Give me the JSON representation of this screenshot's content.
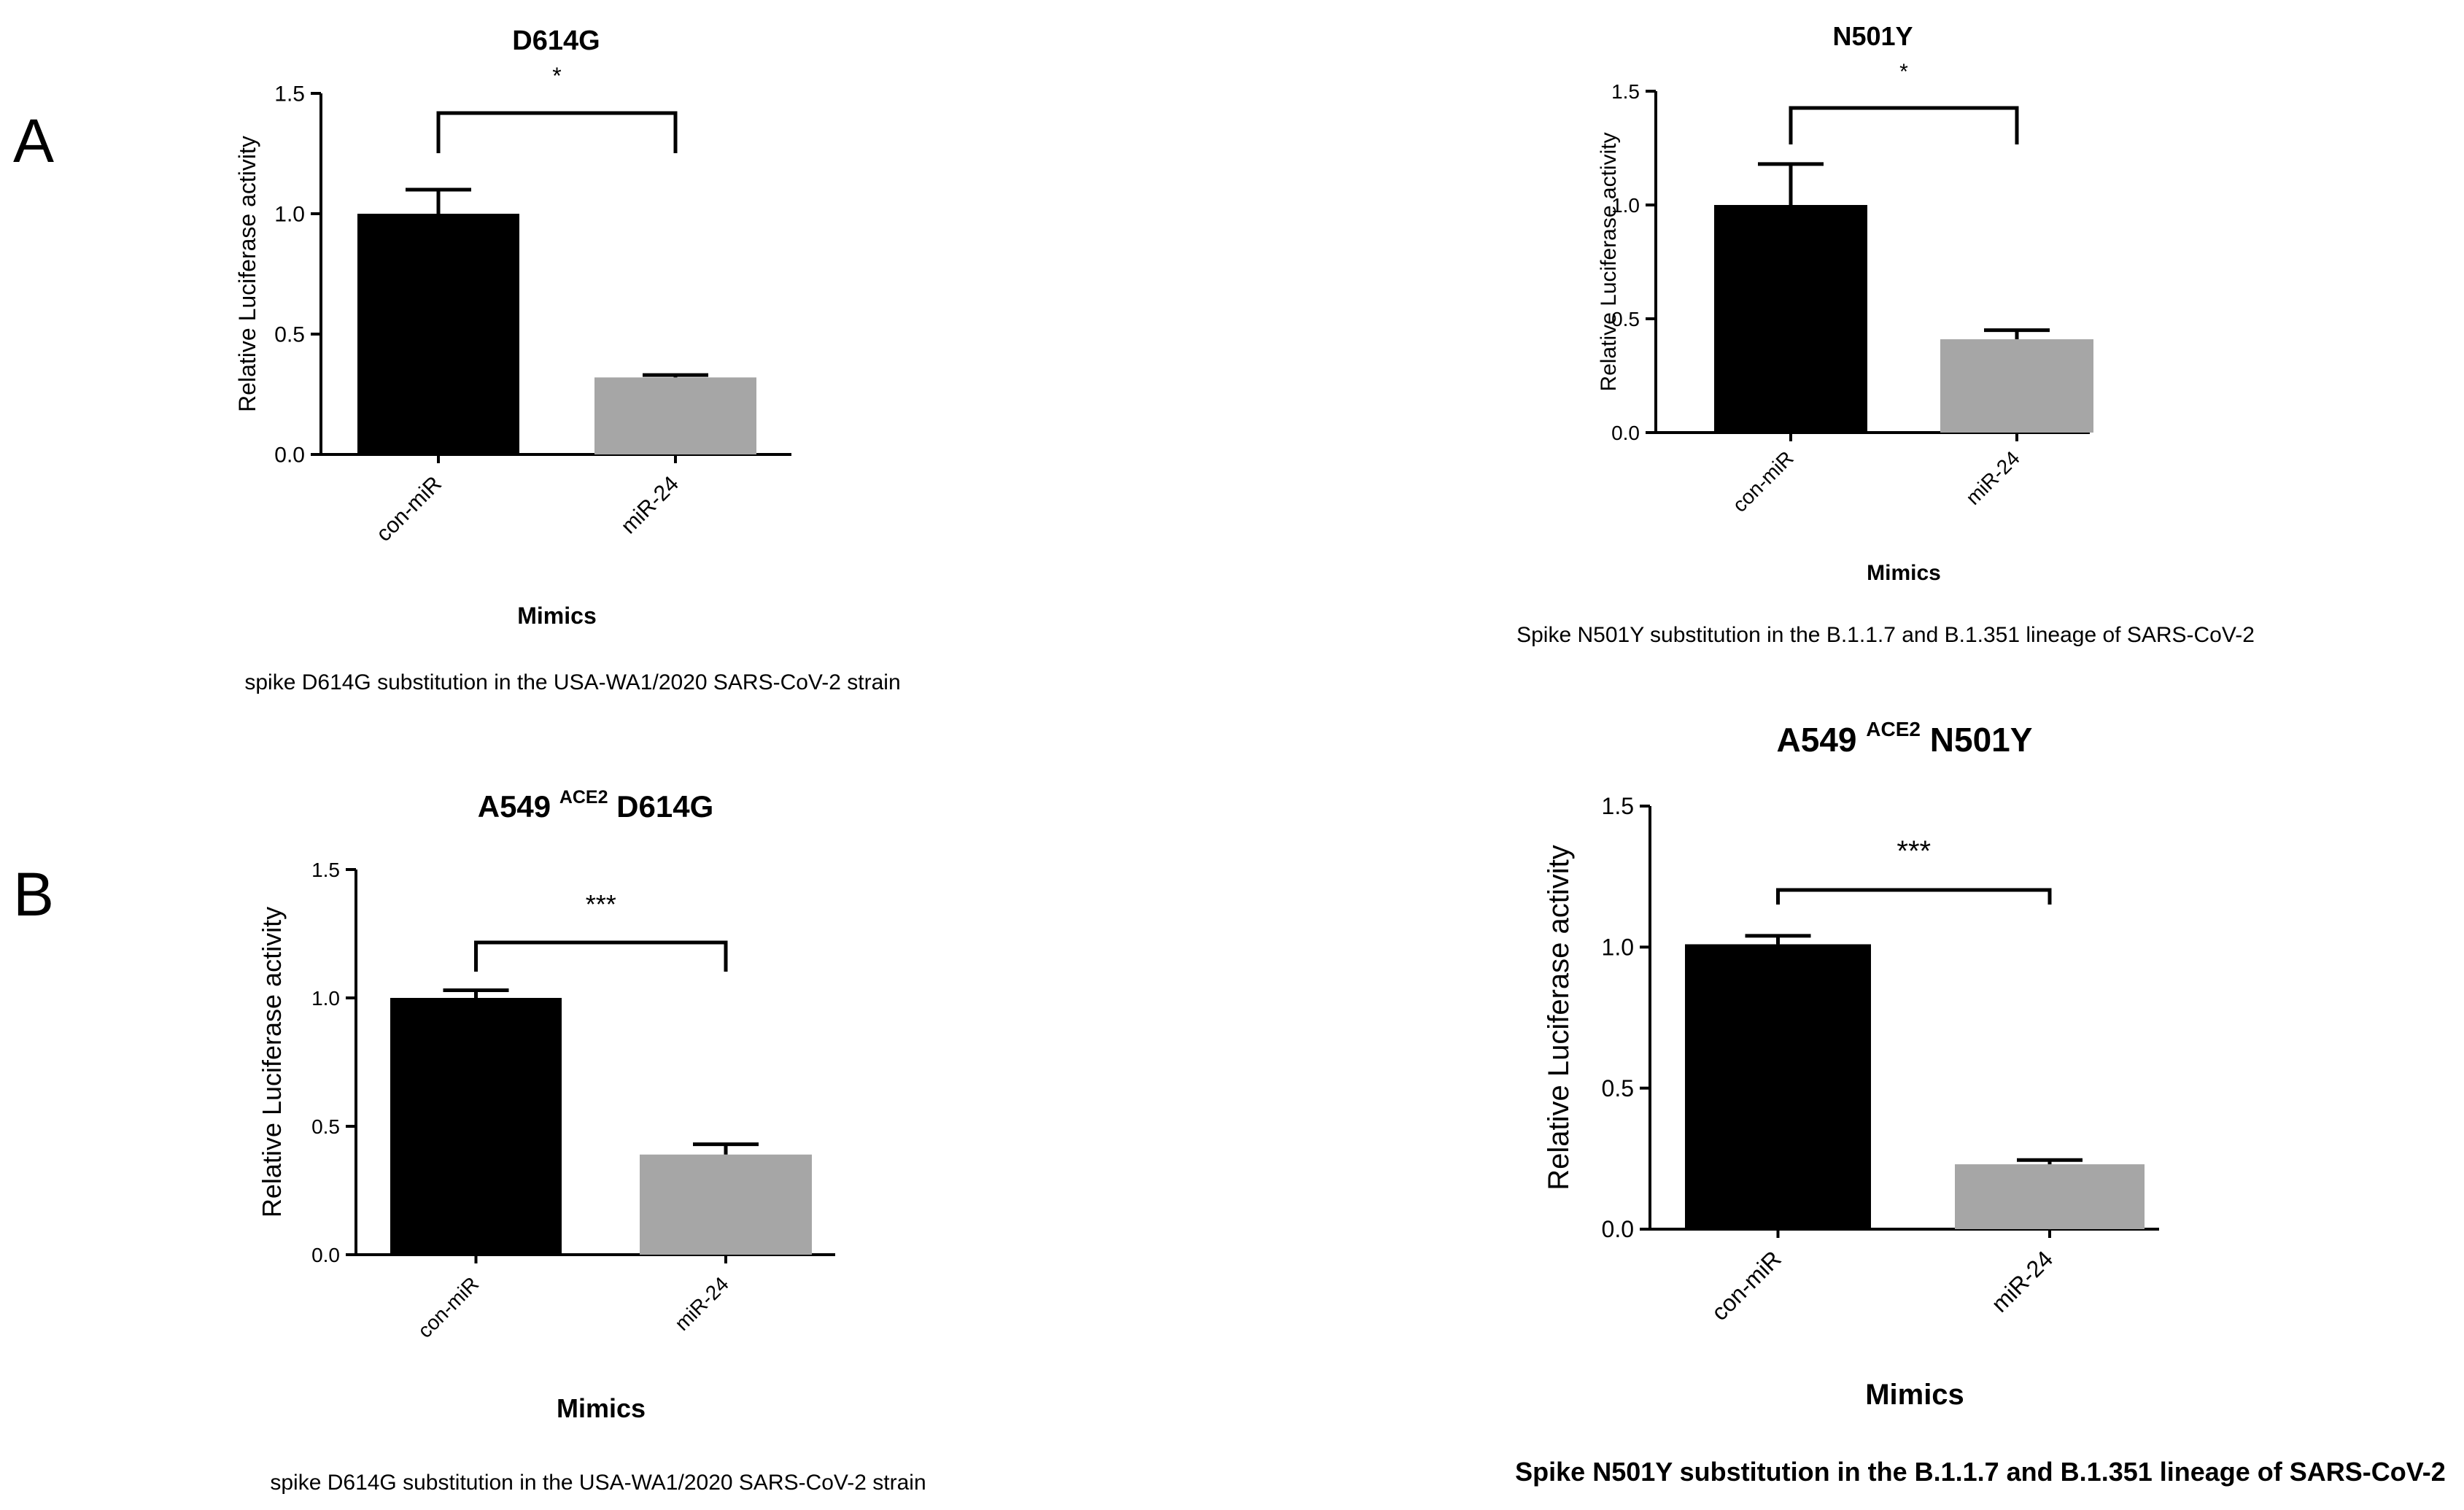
{
  "panel_labels": [
    "A",
    "B"
  ],
  "chart_data": [
    {
      "type": "bar",
      "title": "D614G",
      "title_sup": "",
      "title_suffix": "",
      "categories": [
        "con-miR",
        "miR-24"
      ],
      "values": [
        1.0,
        0.32
      ],
      "errors": [
        0.1,
        0.01
      ],
      "colors": [
        "#000000",
        "#a6a6a6"
      ],
      "xlabel": "Mimics",
      "ylabel": "Relative Luciferase activity",
      "ylim": [
        0,
        1.5
      ],
      "yticks": [
        "0.0",
        "0.5",
        "1.0",
        "1.5"
      ],
      "significance": "*",
      "caption": "spike D614G substitution in the USA-WA1/2020 SARS-CoV-2 strain"
    },
    {
      "type": "bar",
      "title": "N501Y",
      "title_sup": "",
      "title_suffix": "",
      "categories": [
        "con-miR",
        "miR-24"
      ],
      "values": [
        1.0,
        0.41
      ],
      "errors": [
        0.18,
        0.04
      ],
      "colors": [
        "#000000",
        "#a6a6a6"
      ],
      "xlabel": "Mimics",
      "ylabel": "Relative Luciferase activity",
      "ylim": [
        0,
        1.5
      ],
      "yticks": [
        "0.0",
        "0.5",
        "1.0",
        "1.5"
      ],
      "significance": "*",
      "caption": "Spike N501Y substitution in the B.1.1.7 and B.1.351 lineage of SARS-CoV-2"
    },
    {
      "type": "bar",
      "title": "A549 ",
      "title_sup": "ACE2",
      "title_suffix": " D614G",
      "categories": [
        "con-miR",
        "miR-24"
      ],
      "values": [
        1.0,
        0.39
      ],
      "errors": [
        0.03,
        0.04
      ],
      "colors": [
        "#000000",
        "#a6a6a6"
      ],
      "xlabel": "Mimics",
      "ylabel": "Relative Luciferase activity",
      "ylim": [
        0,
        1.5
      ],
      "yticks": [
        "0.0",
        "0.5",
        "1.0",
        "1.5"
      ],
      "significance": "***",
      "caption": "spike D614G substitution in the USA-WA1/2020 SARS-CoV-2 strain"
    },
    {
      "type": "bar",
      "title": "A549 ",
      "title_sup": "ACE2",
      "title_suffix": " N501Y",
      "categories": [
        "con-miR",
        "miR-24"
      ],
      "values": [
        1.01,
        0.23
      ],
      "errors": [
        0.03,
        0.015
      ],
      "colors": [
        "#000000",
        "#a6a6a6"
      ],
      "xlabel": "Mimics",
      "ylabel": "Relative Luciferase activity",
      "ylim": [
        0,
        1.5
      ],
      "yticks": [
        "0.0",
        "0.5",
        "1.0",
        "1.5"
      ],
      "significance": "***",
      "caption": "Spike N501Y substitution in the B.1.1.7 and B.1.351 lineage of SARS-CoV-2"
    }
  ]
}
